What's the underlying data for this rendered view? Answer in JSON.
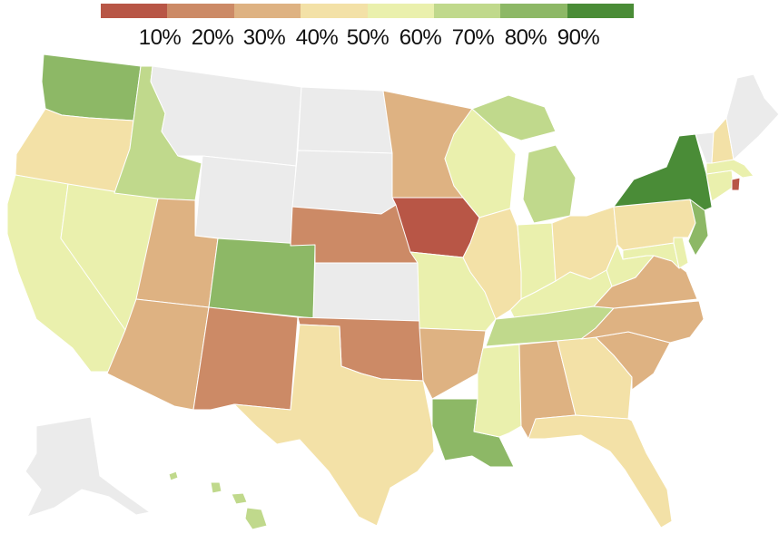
{
  "colors": {
    "bins": [
      "#b85646",
      "#cc8a66",
      "#deb282",
      "#f3e1a7",
      "#eaf0ad",
      "#c0d98c",
      "#8db866",
      "#4a8c37"
    ],
    "nodata": "#ebebeb",
    "stroke": "#ffffff"
  },
  "legend": {
    "ticks": [
      "10%",
      "20%",
      "30%",
      "40%",
      "50%",
      "60%",
      "70%",
      "80%",
      "90%"
    ]
  },
  "states": {
    "WA": {
      "bin": 6
    },
    "OR": {
      "bin": 3
    },
    "CA": {
      "bin": 4
    },
    "NV": {
      "bin": 4
    },
    "ID": {
      "bin": 5
    },
    "MT": {
      "bin": -1
    },
    "WY": {
      "bin": -1
    },
    "UT": {
      "bin": 2
    },
    "AZ": {
      "bin": 2
    },
    "CO": {
      "bin": 6
    },
    "NM": {
      "bin": 1
    },
    "ND": {
      "bin": -1
    },
    "SD": {
      "bin": -1
    },
    "NE": {
      "bin": 1
    },
    "KS": {
      "bin": -1
    },
    "OK": {
      "bin": 1
    },
    "TX": {
      "bin": 3
    },
    "MN": {
      "bin": 2
    },
    "IA": {
      "bin": 0
    },
    "MO": {
      "bin": 4
    },
    "AR": {
      "bin": 2
    },
    "LA": {
      "bin": 6
    },
    "WI": {
      "bin": 4
    },
    "MI": {
      "bin": 5
    },
    "IL": {
      "bin": 3
    },
    "IN": {
      "bin": 4
    },
    "OH": {
      "bin": 3
    },
    "KY": {
      "bin": 4
    },
    "TN": {
      "bin": 5
    },
    "MS": {
      "bin": 4
    },
    "AL": {
      "bin": 2
    },
    "GA": {
      "bin": 3
    },
    "FL": {
      "bin": 3
    },
    "SC": {
      "bin": 2
    },
    "NC": {
      "bin": 2
    },
    "VA": {
      "bin": 2
    },
    "WV": {
      "bin": 4
    },
    "PA": {
      "bin": 3
    },
    "NY": {
      "bin": 7
    },
    "NJ": {
      "bin": 6
    },
    "DE": {
      "bin": 4
    },
    "MD": {
      "bin": 4
    },
    "CT": {
      "bin": 4
    },
    "RI": {
      "bin": 0
    },
    "MA": {
      "bin": 4
    },
    "VT": {
      "bin": -1
    },
    "NH": {
      "bin": 3
    },
    "ME": {
      "bin": -1
    },
    "AK": {
      "bin": -1
    },
    "HI": {
      "bin": 5
    }
  }
}
